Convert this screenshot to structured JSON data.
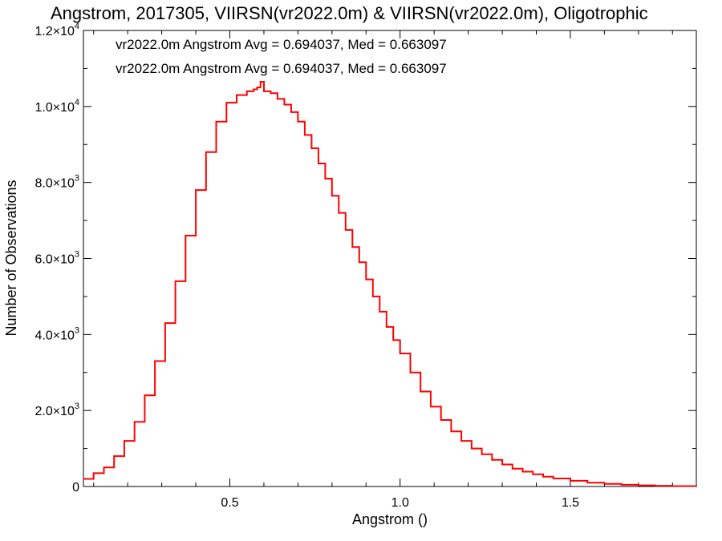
{
  "chart_data": {
    "type": "line",
    "step": true,
    "title": "Angstrom, 2017305, VIIRSN(vr2022.0m) & VIIRSN(vr2022.0m), Oligotrophic",
    "xlabel": "Angstrom ()",
    "ylabel": "Number of Observations",
    "xlim": [
      0.07,
      1.87
    ],
    "ylim": [
      0,
      12000
    ],
    "x_ticks": [
      {
        "value": 0.5,
        "label": "0.5"
      },
      {
        "value": 1.0,
        "label": "1.0"
      },
      {
        "value": 1.5,
        "label": "1.5"
      }
    ],
    "y_ticks": [
      {
        "value": 0,
        "mant": "0",
        "exp": ""
      },
      {
        "value": 2000,
        "mant": "2.0×10",
        "exp": "3"
      },
      {
        "value": 4000,
        "mant": "4.0×10",
        "exp": "3"
      },
      {
        "value": 6000,
        "mant": "6.0×10",
        "exp": "3"
      },
      {
        "value": 8000,
        "mant": "8.0×10",
        "exp": "3"
      },
      {
        "value": 10000,
        "mant": "1.0×10",
        "exp": "4"
      },
      {
        "value": 12000,
        "mant": "1.2×10",
        "exp": "4"
      }
    ],
    "legend": [
      {
        "text": "vr2022.0m Angstrom Avg = 0.694037, Med = 0.663097",
        "color": "#000000"
      },
      {
        "text": "vr2022.0m Angstrom Avg = 0.694037, Med = 0.663097",
        "color": "#ff0000"
      }
    ],
    "series": [
      {
        "color": "#ff0000",
        "x": [
          0.07,
          0.1,
          0.13,
          0.16,
          0.19,
          0.22,
          0.25,
          0.28,
          0.31,
          0.34,
          0.37,
          0.4,
          0.43,
          0.46,
          0.49,
          0.52,
          0.55,
          0.57,
          0.58,
          0.59,
          0.6,
          0.62,
          0.64,
          0.66,
          0.68,
          0.7,
          0.72,
          0.74,
          0.76,
          0.78,
          0.8,
          0.82,
          0.84,
          0.86,
          0.88,
          0.9,
          0.92,
          0.94,
          0.96,
          0.98,
          1.0,
          1.03,
          1.06,
          1.09,
          1.12,
          1.15,
          1.18,
          1.21,
          1.24,
          1.27,
          1.3,
          1.33,
          1.36,
          1.39,
          1.42,
          1.45,
          1.5,
          1.55,
          1.6,
          1.65,
          1.7,
          1.75,
          1.8,
          1.87
        ],
        "y": [
          200,
          350,
          500,
          800,
          1200,
          1700,
          2400,
          3300,
          4300,
          5400,
          6600,
          7800,
          8800,
          9600,
          10100,
          10300,
          10400,
          10450,
          10500,
          10650,
          10400,
          10350,
          10200,
          10050,
          9850,
          9600,
          9250,
          8900,
          8500,
          8100,
          7650,
          7200,
          6750,
          6300,
          5900,
          5450,
          5000,
          4600,
          4200,
          3850,
          3500,
          3000,
          2500,
          2100,
          1750,
          1450,
          1200,
          1000,
          850,
          700,
          580,
          470,
          390,
          320,
          260,
          210,
          150,
          100,
          70,
          45,
          30,
          18,
          10,
          5
        ]
      }
    ]
  }
}
